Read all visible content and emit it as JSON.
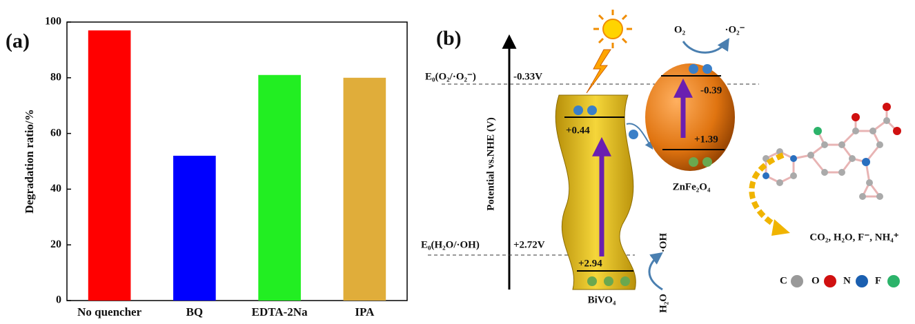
{
  "chart_data": {
    "type": "bar",
    "panel_label": "(a)",
    "ylabel": "Degradation ratio/%",
    "categories": [
      "No quencher",
      "BQ",
      "EDTA-2Na",
      "IPA"
    ],
    "values": [
      97,
      52,
      81,
      80
    ],
    "colors": [
      "#ff0000",
      "#0000ff",
      "#22ee22",
      "#e0ad3a"
    ],
    "ylim": [
      0,
      100
    ],
    "yticks": [
      0,
      20,
      40,
      60,
      80,
      100
    ]
  },
  "diagram": {
    "panel_label": "(b)",
    "axis_label": "Potential vs.NHE (V)",
    "o2_potential_label": "E₀(O₂/·O₂⁻)",
    "o2_potential_value": "-0.33V",
    "oh_potential_label": "E₀(H₂O/·OH)",
    "oh_potential_value": "+2.72V",
    "bivo4_cb": "+0.44",
    "bivo4_vb": "+2.94",
    "bivo4_name": "BiVO₄",
    "znfe2o4_cb": "-0.39",
    "znfe2o4_vb": "+1.39",
    "znfe2o4_name": "ZnFe₂O₄",
    "o2": "O₂",
    "superoxide": "·O₂⁻",
    "hydroxyl": "·OH",
    "water": "H₂O",
    "products": "CO₂, H₂O, F⁻, NH₄⁺",
    "atoms": [
      "C",
      "O",
      "N",
      "F"
    ]
  }
}
